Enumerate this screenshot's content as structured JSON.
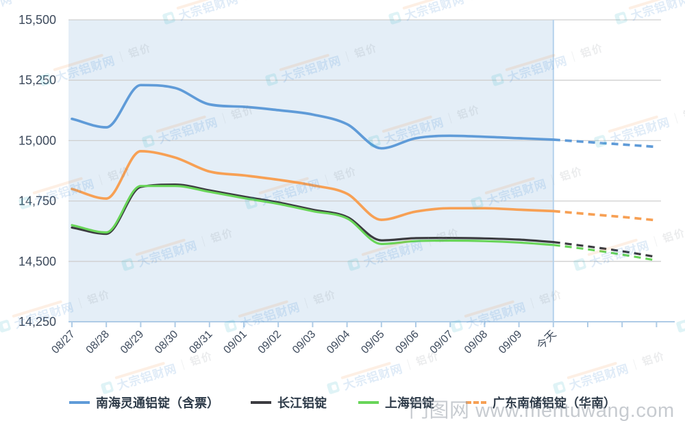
{
  "watermark": {
    "brand": "大宗铝财网",
    "tag": "铝价",
    "photo_site": "门图网",
    "photo_url": "www.mentuwang.com"
  },
  "chart_data": {
    "type": "line",
    "title": "",
    "xlabel": "",
    "ylabel": "",
    "x_labels": [
      "08/27",
      "08/28",
      "08/29",
      "08/30",
      "08/31",
      "09/01",
      "09/02",
      "09/03",
      "09/04",
      "09/05",
      "09/06",
      "09/07",
      "09/08",
      "09/09",
      "今天",
      "",
      "",
      ""
    ],
    "y_tick_labels": [
      "15,500",
      "15,250",
      "15,000",
      "14,750",
      "14,500",
      "14,250"
    ],
    "ylim": [
      14250,
      15500
    ],
    "grid": true,
    "legend_position": "bottom",
    "forecast_from_index": 14,
    "highlight_region": "solid history area shaded light blue up to 今天, dashed forecast after",
    "series": [
      {
        "name": "南海灵通铝锭（含票）",
        "color": "#5f9bd8",
        "marker": "solid",
        "values": [
          15090,
          15055,
          15230,
          15218,
          15150,
          15140,
          15126,
          15108,
          15068,
          14968,
          15010,
          15020,
          15016,
          15010,
          15004,
          14994,
          14984,
          14974
        ]
      },
      {
        "name": "长江铝锭",
        "color": "#3b3b40",
        "marker": "solid",
        "values": [
          14640,
          14614,
          14808,
          14818,
          14794,
          14768,
          14744,
          14714,
          14684,
          14587,
          14596,
          14597,
          14595,
          14590,
          14580,
          14562,
          14542,
          14518
        ]
      },
      {
        "name": "上海铝锭",
        "color": "#68d558",
        "marker": "solid",
        "values": [
          14650,
          14620,
          14812,
          14812,
          14788,
          14762,
          14738,
          14708,
          14678,
          14572,
          14584,
          14586,
          14584,
          14578,
          14568,
          14550,
          14528,
          14504
        ]
      },
      {
        "name": "广东南储铝锭（华南）",
        "color": "#f7a054",
        "marker": "dashed",
        "values": [
          14800,
          14760,
          14956,
          14930,
          14872,
          14856,
          14838,
          14815,
          14780,
          14672,
          14706,
          14720,
          14720,
          14714,
          14708,
          14696,
          14684,
          14670
        ]
      }
    ],
    "colors": {
      "plot_band": "#e4eef7",
      "gridline": "#cfcfcf",
      "axis": "#aecbe6",
      "today_line": "#b5d2ec",
      "tick_text": "#3d4a5c"
    }
  }
}
